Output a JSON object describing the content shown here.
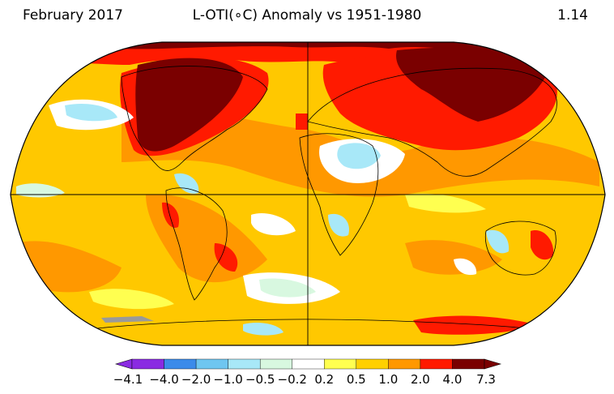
{
  "header": {
    "month_year": "February 2017",
    "title": "L-OTI(∘C) Anomaly vs 1951-1980",
    "global_mean": "1.14"
  },
  "colorbar": {
    "ticks": [
      "−4.1",
      "−4.0",
      "−2.0",
      "−1.0",
      "−0.5",
      "−0.2",
      "0.2",
      "0.5",
      "1.0",
      "2.0",
      "4.0",
      "7.3"
    ],
    "colors": [
      "#8a2be2",
      "#3b8bea",
      "#6ec6f0",
      "#a8e8f8",
      "#d8f8e0",
      "#ffffff",
      "#ffff50",
      "#ffd000",
      "#ff9800",
      "#ff1a00",
      "#7a0000"
    ]
  },
  "palette": {
    "ocean_base": "#ffc800",
    "land_warm": "#ff9800",
    "hot": "#ff1a00",
    "very_hot": "#7a0000",
    "neutral": "#ffffff",
    "cool": "#a8e8f8",
    "gray": "#9a9a9a"
  }
}
